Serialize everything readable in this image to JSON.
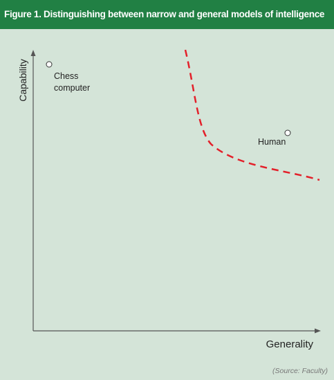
{
  "header": {
    "title": "Figure 1. Distinguishing between narrow and general models of intelligence"
  },
  "axes": {
    "y_label": "Capability",
    "x_label": "Generality"
  },
  "points": [
    {
      "label_lines": [
        "Chess",
        "computer"
      ]
    },
    {
      "label_lines": [
        "Human"
      ]
    }
  ],
  "source": "(Source: Faculty)"
}
